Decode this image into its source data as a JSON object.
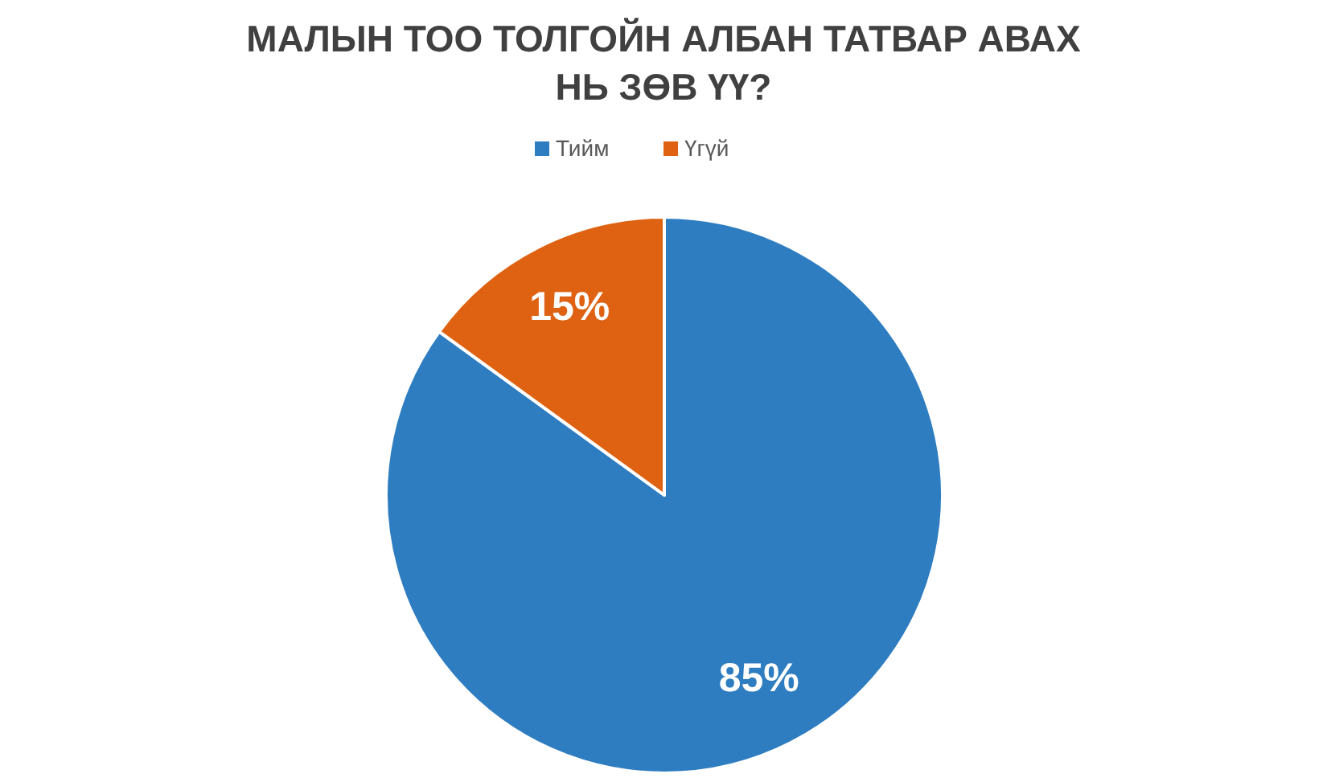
{
  "chart_data": {
    "type": "pie",
    "title": "МАЛЫН ТОО ТОЛГОЙН АЛБАН ТАТВАР АВАХ НЬ ЗӨВ ҮҮ?",
    "categories": [
      "Тийм",
      "Үгүй"
    ],
    "values": [
      85,
      15
    ],
    "colors": [
      "#2e7dc0",
      "#de6211"
    ],
    "value_labels": [
      "85%",
      "15%"
    ],
    "legend": "top"
  }
}
